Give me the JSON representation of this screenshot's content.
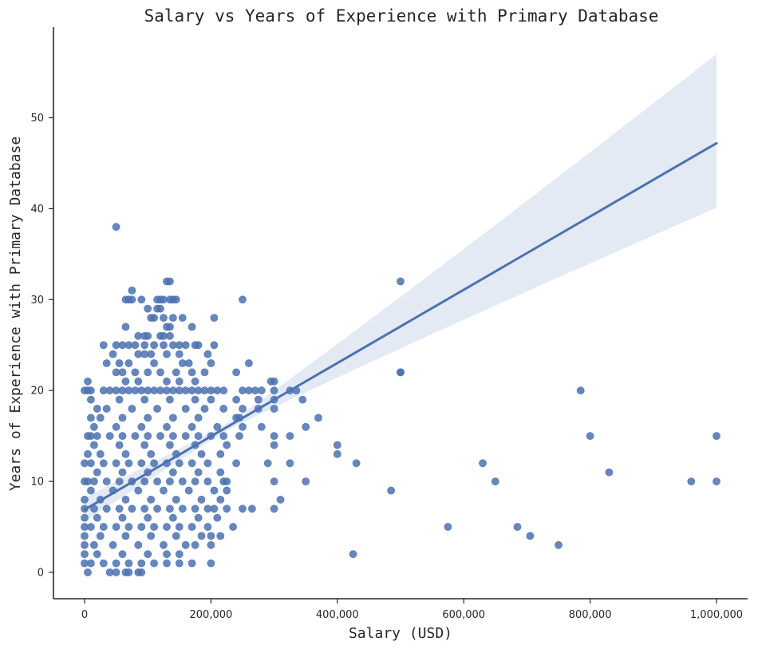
{
  "chart_data": {
    "type": "scatter",
    "title": "Salary vs Years of Experience with Primary Database",
    "xlabel": "Salary (USD)",
    "ylabel": "Years of Experience with Primary Database",
    "xlim": [
      -50000,
      1050000
    ],
    "ylim": [
      -2.8,
      59.5
    ],
    "xticks": [
      0,
      200000,
      400000,
      600000,
      800000,
      1000000
    ],
    "xtick_labels": [
      "0",
      "200,000",
      "400,000",
      "600,000",
      "800,000",
      "1,000,000"
    ],
    "yticks": [
      0,
      10,
      20,
      30,
      40,
      50
    ],
    "ytick_labels": [
      "0",
      "10",
      "20",
      "30",
      "40",
      "50"
    ],
    "grid": false,
    "spines": "left-bottom",
    "colors": {
      "points": "#4c72b0",
      "line": "#4c72b0",
      "band": "#dfe6f2"
    },
    "regression": {
      "x_range": [
        0,
        1000000
      ],
      "line_y": [
        6.9,
        47.2
      ],
      "ci_upper": [
        8.2,
        57.0
      ],
      "ci_lower": [
        5.6,
        40.1
      ],
      "ci_pinch_x": 220000
    },
    "points": [
      [
        50000,
        38
      ],
      [
        500000,
        32
      ],
      [
        500000,
        22
      ],
      [
        130000,
        32
      ],
      [
        135000,
        32
      ],
      [
        75000,
        31
      ],
      [
        65000,
        30
      ],
      [
        70000,
        30
      ],
      [
        75000,
        30
      ],
      [
        90000,
        30
      ],
      [
        115000,
        30
      ],
      [
        120000,
        30
      ],
      [
        125000,
        30
      ],
      [
        135000,
        30
      ],
      [
        140000,
        30
      ],
      [
        145000,
        30
      ],
      [
        250000,
        30
      ],
      [
        100000,
        29
      ],
      [
        115000,
        29
      ],
      [
        120000,
        29
      ],
      [
        105000,
        28
      ],
      [
        110000,
        28
      ],
      [
        125000,
        28
      ],
      [
        140000,
        28
      ],
      [
        155000,
        28
      ],
      [
        205000,
        28
      ],
      [
        65000,
        27
      ],
      [
        130000,
        27
      ],
      [
        135000,
        27
      ],
      [
        170000,
        27
      ],
      [
        85000,
        26
      ],
      [
        95000,
        26
      ],
      [
        100000,
        26
      ],
      [
        120000,
        26
      ],
      [
        125000,
        26
      ],
      [
        135000,
        26
      ],
      [
        30000,
        25
      ],
      [
        50000,
        25
      ],
      [
        60000,
        25
      ],
      [
        70000,
        25
      ],
      [
        80000,
        25
      ],
      [
        95000,
        25
      ],
      [
        110000,
        25
      ],
      [
        125000,
        25
      ],
      [
        140000,
        25
      ],
      [
        150000,
        25
      ],
      [
        160000,
        25
      ],
      [
        175000,
        25
      ],
      [
        180000,
        25
      ],
      [
        205000,
        25
      ],
      [
        45000,
        24
      ],
      [
        85000,
        24
      ],
      [
        95000,
        24
      ],
      [
        105000,
        24
      ],
      [
        130000,
        24
      ],
      [
        150000,
        24
      ],
      [
        195000,
        24
      ],
      [
        35000,
        23
      ],
      [
        55000,
        23
      ],
      [
        70000,
        23
      ],
      [
        110000,
        23
      ],
      [
        155000,
        23
      ],
      [
        165000,
        23
      ],
      [
        200000,
        23
      ],
      [
        260000,
        23
      ],
      [
        50000,
        22
      ],
      [
        60000,
        22
      ],
      [
        80000,
        22
      ],
      [
        100000,
        22
      ],
      [
        120000,
        22
      ],
      [
        145000,
        22
      ],
      [
        170000,
        22
      ],
      [
        190000,
        22
      ],
      [
        240000,
        22
      ],
      [
        500000,
        22
      ],
      [
        5000,
        21
      ],
      [
        65000,
        21
      ],
      [
        85000,
        21
      ],
      [
        130000,
        21
      ],
      [
        150000,
        21
      ],
      [
        175000,
        21
      ],
      [
        295000,
        21
      ],
      [
        300000,
        21
      ],
      [
        0,
        20
      ],
      [
        5000,
        20
      ],
      [
        10000,
        20
      ],
      [
        30000,
        20
      ],
      [
        40000,
        20
      ],
      [
        50000,
        20
      ],
      [
        60000,
        20
      ],
      [
        70000,
        20
      ],
      [
        80000,
        20
      ],
      [
        90000,
        20
      ],
      [
        100000,
        20
      ],
      [
        110000,
        20
      ],
      [
        120000,
        20
      ],
      [
        130000,
        20
      ],
      [
        140000,
        20
      ],
      [
        150000,
        20
      ],
      [
        160000,
        20
      ],
      [
        170000,
        20
      ],
      [
        180000,
        20
      ],
      [
        190000,
        20
      ],
      [
        200000,
        20
      ],
      [
        210000,
        20
      ],
      [
        220000,
        20
      ],
      [
        250000,
        20
      ],
      [
        260000,
        20
      ],
      [
        270000,
        20
      ],
      [
        280000,
        20
      ],
      [
        300000,
        20
      ],
      [
        325000,
        20
      ],
      [
        335000,
        20
      ],
      [
        785000,
        20
      ],
      [
        10000,
        19
      ],
      [
        55000,
        19
      ],
      [
        95000,
        19
      ],
      [
        135000,
        19
      ],
      [
        175000,
        19
      ],
      [
        200000,
        19
      ],
      [
        240000,
        19
      ],
      [
        275000,
        19
      ],
      [
        300000,
        19
      ],
      [
        345000,
        19
      ],
      [
        20000,
        18
      ],
      [
        35000,
        18
      ],
      [
        75000,
        18
      ],
      [
        115000,
        18
      ],
      [
        160000,
        18
      ],
      [
        190000,
        18
      ],
      [
        220000,
        18
      ],
      [
        250000,
        18
      ],
      [
        275000,
        18
      ],
      [
        300000,
        18
      ],
      [
        10000,
        17
      ],
      [
        25000,
        17
      ],
      [
        60000,
        17
      ],
      [
        100000,
        17
      ],
      [
        140000,
        17
      ],
      [
        180000,
        17
      ],
      [
        240000,
        17
      ],
      [
        245000,
        17
      ],
      [
        370000,
        17
      ],
      [
        15000,
        16
      ],
      [
        50000,
        16
      ],
      [
        90000,
        16
      ],
      [
        130000,
        16
      ],
      [
        170000,
        16
      ],
      [
        210000,
        16
      ],
      [
        250000,
        16
      ],
      [
        280000,
        16
      ],
      [
        350000,
        16
      ],
      [
        5000,
        15
      ],
      [
        10000,
        15
      ],
      [
        20000,
        15
      ],
      [
        40000,
        15
      ],
      [
        60000,
        15
      ],
      [
        80000,
        15
      ],
      [
        100000,
        15
      ],
      [
        120000,
        15
      ],
      [
        140000,
        15
      ],
      [
        160000,
        15
      ],
      [
        180000,
        15
      ],
      [
        200000,
        15
      ],
      [
        220000,
        15
      ],
      [
        245000,
        15
      ],
      [
        300000,
        15
      ],
      [
        325000,
        15
      ],
      [
        800000,
        15
      ],
      [
        1000000,
        15
      ],
      [
        15000,
        14
      ],
      [
        55000,
        14
      ],
      [
        95000,
        14
      ],
      [
        135000,
        14
      ],
      [
        175000,
        14
      ],
      [
        225000,
        14
      ],
      [
        300000,
        14
      ],
      [
        400000,
        14
      ],
      [
        5000,
        13
      ],
      [
        25000,
        13
      ],
      [
        65000,
        13
      ],
      [
        105000,
        13
      ],
      [
        145000,
        13
      ],
      [
        185000,
        13
      ],
      [
        215000,
        13
      ],
      [
        400000,
        13
      ],
      [
        0,
        12
      ],
      [
        10000,
        12
      ],
      [
        30000,
        12
      ],
      [
        50000,
        12
      ],
      [
        70000,
        12
      ],
      [
        90000,
        12
      ],
      [
        110000,
        12
      ],
      [
        130000,
        12
      ],
      [
        150000,
        12
      ],
      [
        170000,
        12
      ],
      [
        195000,
        12
      ],
      [
        240000,
        12
      ],
      [
        290000,
        12
      ],
      [
        325000,
        12
      ],
      [
        430000,
        12
      ],
      [
        630000,
        12
      ],
      [
        20000,
        11
      ],
      [
        60000,
        11
      ],
      [
        100000,
        11
      ],
      [
        140000,
        11
      ],
      [
        180000,
        11
      ],
      [
        215000,
        11
      ],
      [
        830000,
        11
      ],
      [
        0,
        10
      ],
      [
        5000,
        10
      ],
      [
        15000,
        10
      ],
      [
        35000,
        10
      ],
      [
        55000,
        10
      ],
      [
        75000,
        10
      ],
      [
        95000,
        10
      ],
      [
        115000,
        10
      ],
      [
        135000,
        10
      ],
      [
        155000,
        10
      ],
      [
        175000,
        10
      ],
      [
        195000,
        10
      ],
      [
        220000,
        10
      ],
      [
        225000,
        10
      ],
      [
        300000,
        10
      ],
      [
        350000,
        10
      ],
      [
        650000,
        10
      ],
      [
        960000,
        10
      ],
      [
        1000000,
        10
      ],
      [
        10000,
        9
      ],
      [
        45000,
        9
      ],
      [
        85000,
        9
      ],
      [
        125000,
        9
      ],
      [
        165000,
        9
      ],
      [
        205000,
        9
      ],
      [
        225000,
        9
      ],
      [
        485000,
        9
      ],
      [
        0,
        8
      ],
      [
        25000,
        8
      ],
      [
        65000,
        8
      ],
      [
        105000,
        8
      ],
      [
        145000,
        8
      ],
      [
        185000,
        8
      ],
      [
        215000,
        8
      ],
      [
        310000,
        8
      ],
      [
        0,
        7
      ],
      [
        15000,
        7
      ],
      [
        35000,
        7
      ],
      [
        55000,
        7
      ],
      [
        75000,
        7
      ],
      [
        95000,
        7
      ],
      [
        115000,
        7
      ],
      [
        135000,
        7
      ],
      [
        155000,
        7
      ],
      [
        175000,
        7
      ],
      [
        195000,
        7
      ],
      [
        205000,
        7
      ],
      [
        225000,
        7
      ],
      [
        250000,
        7
      ],
      [
        265000,
        7
      ],
      [
        300000,
        7
      ],
      [
        0,
        6
      ],
      [
        20000,
        6
      ],
      [
        60000,
        6
      ],
      [
        100000,
        6
      ],
      [
        140000,
        6
      ],
      [
        180000,
        6
      ],
      [
        210000,
        6
      ],
      [
        0,
        5
      ],
      [
        10000,
        5
      ],
      [
        30000,
        5
      ],
      [
        50000,
        5
      ],
      [
        70000,
        5
      ],
      [
        90000,
        5
      ],
      [
        110000,
        5
      ],
      [
        130000,
        5
      ],
      [
        150000,
        5
      ],
      [
        170000,
        5
      ],
      [
        195000,
        5
      ],
      [
        235000,
        5
      ],
      [
        575000,
        5
      ],
      [
        685000,
        5
      ],
      [
        0,
        4
      ],
      [
        25000,
        4
      ],
      [
        65000,
        4
      ],
      [
        105000,
        4
      ],
      [
        145000,
        4
      ],
      [
        185000,
        4
      ],
      [
        200000,
        4
      ],
      [
        215000,
        4
      ],
      [
        705000,
        4
      ],
      [
        0,
        3
      ],
      [
        15000,
        3
      ],
      [
        45000,
        3
      ],
      [
        85000,
        3
      ],
      [
        125000,
        3
      ],
      [
        160000,
        3
      ],
      [
        175000,
        3
      ],
      [
        200000,
        3
      ],
      [
        750000,
        3
      ],
      [
        0,
        2
      ],
      [
        20000,
        2
      ],
      [
        60000,
        2
      ],
      [
        100000,
        2
      ],
      [
        130000,
        2
      ],
      [
        150000,
        2
      ],
      [
        425000,
        2
      ],
      [
        0,
        1
      ],
      [
        10000,
        1
      ],
      [
        30000,
        1
      ],
      [
        50000,
        1
      ],
      [
        70000,
        1
      ],
      [
        90000,
        1
      ],
      [
        110000,
        1
      ],
      [
        130000,
        1
      ],
      [
        150000,
        1
      ],
      [
        170000,
        1
      ],
      [
        200000,
        1
      ],
      [
        5000,
        0
      ],
      [
        40000,
        0
      ],
      [
        50000,
        0
      ],
      [
        65000,
        0
      ],
      [
        70000,
        0
      ],
      [
        85000,
        0
      ],
      [
        90000,
        0
      ]
    ]
  }
}
